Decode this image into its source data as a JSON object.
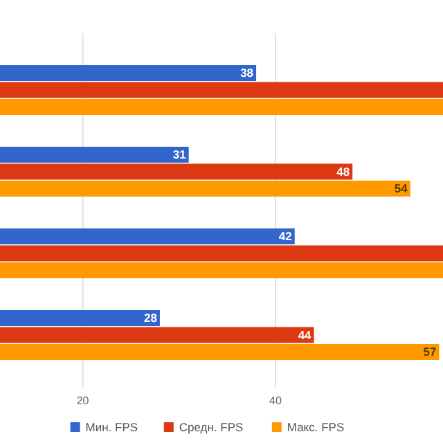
{
  "chart_data": {
    "type": "bar",
    "orientation": "horizontal",
    "categories": [
      null,
      null,
      null,
      null
    ],
    "series": [
      {
        "name": "Мин. FPS",
        "color": "#3366cc",
        "values": [
          38,
          31,
          42,
          28
        ],
        "value_labels": [
          "38",
          "31",
          "42",
          "28"
        ]
      },
      {
        "name": "Средн. FPS",
        "color": "#dc3912",
        "values": [
          57.4,
          48,
          57.4,
          44
        ],
        "value_labels": [
          null,
          "48",
          null,
          "44"
        ]
      },
      {
        "name": "Макс. FPS",
        "color": "#ff9900",
        "values": [
          57.4,
          54,
          57.4,
          57
        ],
        "value_labels": [
          null,
          "54",
          null,
          "57"
        ]
      }
    ],
    "xlim": [
      11.4,
      57.4
    ],
    "xticks": [
      20,
      40
    ],
    "grid": "x",
    "legend": "bottom"
  }
}
